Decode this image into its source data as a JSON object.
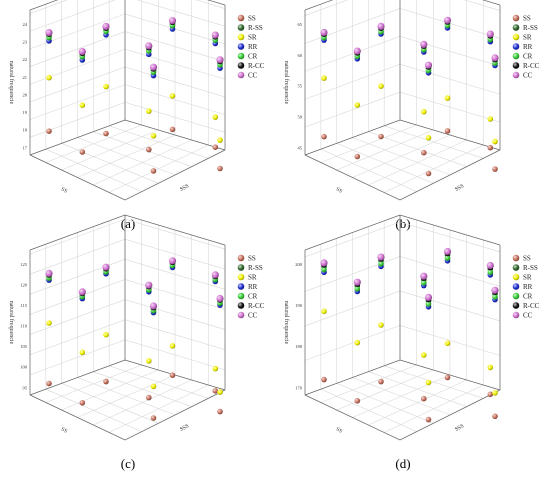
{
  "legend": [
    {
      "name": "SS",
      "color": "#c56e5a"
    },
    {
      "name": "R-SS",
      "color": "#2d6a2d"
    },
    {
      "name": "SR",
      "color": "#f0f000"
    },
    {
      "name": "RR",
      "color": "#1f2fd0"
    },
    {
      "name": "CR",
      "color": "#33cc33"
    },
    {
      "name": "R-CC",
      "color": "#111111"
    },
    {
      "name": "CC",
      "color": "#cf6fcf"
    }
  ],
  "chart_data": [
    {
      "type": "scatter",
      "panel_label": "(a)",
      "ylabel": "natural frequencie",
      "xlabel": "SS",
      "zlabel": "SSS",
      "z_ticks": [
        "17",
        "18",
        "19",
        "20",
        "21",
        "22",
        "23",
        "24"
      ],
      "series": [
        {
          "name": "SS",
          "values": [
            18.2,
            17.6,
            17.3,
            17.9,
            17.5,
            17.1,
            17.4,
            17.0
          ]
        },
        {
          "name": "R-SS",
          "values": [
            23.9,
            23.8,
            23.6,
            23.7,
            23.5,
            23.6,
            23.4,
            23.3
          ]
        },
        {
          "name": "SR",
          "values": [
            21.4,
            20.4,
            19.3,
            20.7,
            19.8,
            18.9,
            19.5,
            18.7
          ]
        },
        {
          "name": "RR",
          "values": [
            23.6,
            23.5,
            23.3,
            23.4,
            23.2,
            23.3,
            23.1,
            23.0
          ]
        },
        {
          "name": "CR",
          "values": [
            23.8,
            23.7,
            23.5,
            23.6,
            23.4,
            23.5,
            23.3,
            23.2
          ]
        },
        {
          "name": "R-CC",
          "values": [
            24.0,
            23.9,
            23.7,
            23.8,
            23.6,
            23.7,
            23.5,
            23.4
          ]
        },
        {
          "name": "CC",
          "values": [
            24.1,
            24.0,
            23.8,
            23.9,
            23.7,
            23.8,
            23.6,
            23.5
          ]
        }
      ]
    },
    {
      "type": "scatter",
      "panel_label": "(b)",
      "ylabel": "natural frequencie",
      "xlabel": "SS",
      "zlabel": "SSS",
      "z_ticks": [
        "45",
        "50",
        "55",
        "60",
        "65"
      ],
      "series": [
        {
          "name": "SS",
          "values": [
            47.5,
            46.2,
            45.6,
            46.8,
            45.9,
            45.2,
            45.7,
            44.9
          ]
        },
        {
          "name": "R-SS",
          "values": [
            64.8,
            64.5,
            64.0,
            64.3,
            63.9,
            64.1,
            63.7,
            63.4
          ]
        },
        {
          "name": "SR",
          "values": [
            57.5,
            54.8,
            51.2,
            55.6,
            52.9,
            50.1,
            51.8,
            49.6
          ]
        },
        {
          "name": "RR",
          "values": [
            64.0,
            63.7,
            63.2,
            63.5,
            63.1,
            63.3,
            62.9,
            62.6
          ]
        },
        {
          "name": "CR",
          "values": [
            64.4,
            64.1,
            63.6,
            63.9,
            63.5,
            63.7,
            63.3,
            63.0
          ]
        },
        {
          "name": "R-CC",
          "values": [
            65.0,
            64.7,
            64.2,
            64.5,
            64.1,
            64.3,
            63.9,
            63.6
          ]
        },
        {
          "name": "CC",
          "values": [
            65.3,
            65.0,
            64.5,
            64.8,
            64.4,
            64.6,
            64.2,
            63.9
          ]
        }
      ]
    },
    {
      "type": "scatter",
      "panel_label": "(c)",
      "ylabel": "natural frequencie",
      "xlabel": "SS",
      "zlabel": "SSS",
      "z_ticks": [
        "95",
        "100",
        "105",
        "110",
        "115",
        "120",
        "125"
      ],
      "series": [
        {
          "name": "SS",
          "values": [
            97.0,
            95.5,
            94.8,
            96.1,
            95.1,
            94.5,
            94.9,
            94.2
          ]
        },
        {
          "name": "R-SS",
          "values": [
            124.5,
            124.1,
            123.4,
            123.8,
            123.2,
            123.5,
            122.9,
            122.5
          ]
        },
        {
          "name": "SR",
          "values": [
            112.5,
            107.5,
            102.3,
            109.0,
            104.5,
            100.2,
            103.0,
            99.2
          ]
        },
        {
          "name": "RR",
          "values": [
            123.5,
            123.1,
            122.4,
            122.8,
            122.2,
            122.5,
            121.9,
            121.5
          ]
        },
        {
          "name": "CR",
          "values": [
            124.0,
            123.6,
            122.9,
            123.3,
            122.7,
            123.0,
            122.4,
            122.0
          ]
        },
        {
          "name": "R-CC",
          "values": [
            124.8,
            124.4,
            123.7,
            124.1,
            123.5,
            123.8,
            123.2,
            122.8
          ]
        },
        {
          "name": "CC",
          "values": [
            125.2,
            124.8,
            124.1,
            124.5,
            123.9,
            124.2,
            123.6,
            123.2
          ]
        }
      ]
    },
    {
      "type": "scatter",
      "panel_label": "(d)",
      "ylabel": "natural frequencie",
      "xlabel": "SS",
      "zlabel": "SSS",
      "z_ticks": [
        "170",
        "180",
        "190",
        "200"
      ],
      "series": [
        {
          "name": "SS",
          "values": [
            173.0,
            170.5,
            169.2,
            171.6,
            169.8,
            168.6,
            169.5,
            168.0
          ]
        },
        {
          "name": "R-SS",
          "values": [
            202.0,
            201.5,
            200.6,
            201.1,
            200.3,
            200.7,
            199.9,
            199.4
          ]
        },
        {
          "name": "SR",
          "values": [
            190.5,
            185.0,
            178.0,
            186.5,
            181.0,
            175.5,
            179.0,
            174.0
          ]
        },
        {
          "name": "RR",
          "values": [
            200.5,
            200.0,
            199.1,
            199.6,
            198.8,
            199.2,
            198.4,
            197.9
          ]
        },
        {
          "name": "CR",
          "values": [
            201.2,
            200.7,
            199.8,
            200.3,
            199.5,
            199.9,
            199.1,
            198.6
          ]
        },
        {
          "name": "R-CC",
          "values": [
            202.4,
            201.9,
            201.0,
            201.5,
            200.7,
            201.1,
            200.3,
            199.8
          ]
        },
        {
          "name": "CC",
          "values": [
            202.9,
            202.4,
            201.5,
            202.0,
            201.2,
            201.6,
            200.8,
            200.3
          ]
        }
      ]
    }
  ]
}
